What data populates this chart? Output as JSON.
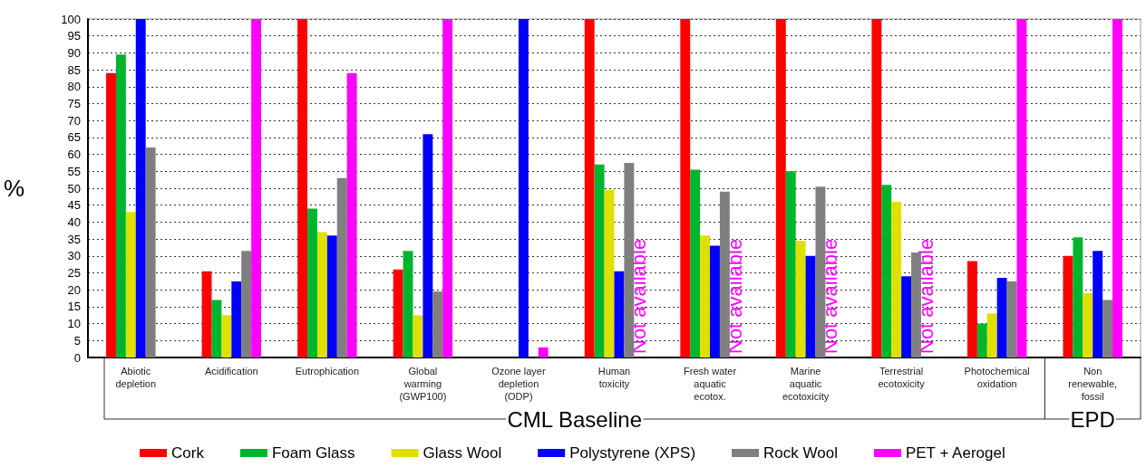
{
  "chart_data": {
    "type": "bar",
    "ylabel": "%",
    "categories": [
      "Abiotic\ndepletion",
      "Acidification",
      "Eutrophication",
      "Global\nwarming\n(GWP100)",
      "Ozone layer\ndepletion\n(ODP)",
      "Human\ntoxicity",
      "Fresh water\naquatic\necotox.",
      "Marine\naquatic\necotoxicity",
      "Terrestrial\necotoxicity",
      "Photochemical\noxidation",
      "Non\nrenewable,\nfossil"
    ],
    "series": [
      {
        "name": "Cork",
        "color": "#ff0000",
        "values": [
          84,
          25.5,
          100,
          26,
          0,
          100,
          100,
          100,
          100,
          28.5,
          30
        ]
      },
      {
        "name": "Foam Glass",
        "color": "#00b52e",
        "values": [
          89.5,
          17,
          44,
          31.5,
          0,
          57,
          55.5,
          55,
          51,
          10,
          35.5
        ]
      },
      {
        "name": "Glass Wool",
        "color": "#e0e000",
        "values": [
          43,
          12.5,
          37,
          12.5,
          0,
          49.5,
          36,
          34.5,
          46,
          13,
          19
        ]
      },
      {
        "name": "Polystyrene (XPS)",
        "color": "#0000ff",
        "values": [
          100,
          22.5,
          36,
          66,
          100,
          25.5,
          33,
          30,
          24,
          23.5,
          31.5
        ]
      },
      {
        "name": "Rock Wool",
        "color": "#7f7f7f",
        "values": [
          62,
          31.5,
          53,
          19.5,
          0,
          57.5,
          49,
          50.5,
          31,
          22.5,
          17
        ]
      },
      {
        "name": "PET + Aerogel",
        "color": "#ff00ff",
        "values": [
          0,
          100,
          84,
          100,
          3,
          null,
          null,
          null,
          null,
          100,
          100
        ]
      }
    ],
    "ylim": [
      0,
      100
    ],
    "yticks": [
      0,
      5,
      10,
      15,
      20,
      25,
      30,
      35,
      40,
      45,
      50,
      55,
      60,
      65,
      70,
      75,
      80,
      85,
      90,
      95,
      100
    ],
    "grid": "y",
    "legend": "bottom",
    "annotations": [
      {
        "text": "Not available",
        "x": "Human\ntoxicity",
        "y": 0
      },
      {
        "text": "Not available",
        "x": "Fresh water\naquatic\necotox.",
        "y": 0
      },
      {
        "text": "Not available",
        "x": "Marine\naquatic\necotoxicity",
        "y": 0
      },
      {
        "text": "Not available",
        "x": "Terrestrial\necotoxicity",
        "y": 0
      },
      "CML Baseline",
      "EPD"
    ]
  }
}
